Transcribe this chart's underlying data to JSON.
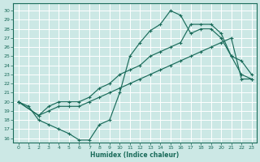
{
  "xlabel": "Humidex (Indice chaleur)",
  "bg_color": "#cce8e5",
  "grid_color": "#b8d8d5",
  "line_color": "#1a6b5a",
  "xlim": [
    -0.5,
    23.5
  ],
  "ylim": [
    15.5,
    30.8
  ],
  "xticks": [
    0,
    1,
    2,
    3,
    4,
    5,
    6,
    7,
    8,
    9,
    10,
    11,
    12,
    13,
    14,
    15,
    16,
    17,
    18,
    19,
    20,
    21,
    22,
    23
  ],
  "yticks": [
    16,
    17,
    18,
    19,
    20,
    21,
    22,
    23,
    24,
    25,
    26,
    27,
    28,
    29,
    30
  ],
  "line1_x": [
    0,
    1,
    2,
    3,
    4,
    5,
    6,
    7,
    8,
    9,
    10,
    11,
    12,
    13,
    14,
    15,
    16,
    17,
    18,
    19,
    20,
    21,
    22,
    23
  ],
  "line1_y": [
    20,
    19.5,
    18,
    17.5,
    17,
    16.5,
    15.8,
    15.8,
    17.5,
    18,
    21,
    25,
    26.5,
    27.8,
    28.5,
    30,
    29.5,
    27.5,
    28,
    28,
    27,
    25,
    23,
    22.5
  ],
  "line2_x": [
    0,
    2,
    3,
    4,
    5,
    6,
    7,
    8,
    9,
    10,
    11,
    12,
    13,
    14,
    15,
    16,
    17,
    18,
    19,
    20,
    21,
    22,
    23
  ],
  "line2_y": [
    20,
    18.5,
    19.5,
    20,
    20,
    20,
    20.5,
    21.5,
    22,
    23,
    23.5,
    24,
    25,
    25.5,
    26,
    26.5,
    28.5,
    28.5,
    28.5,
    27.5,
    25,
    24.5,
    23
  ],
  "line3_x": [
    0,
    2,
    3,
    4,
    5,
    6,
    7,
    8,
    9,
    10,
    11,
    12,
    13,
    14,
    15,
    16,
    17,
    18,
    19,
    20,
    21,
    22,
    23
  ],
  "line3_y": [
    20,
    18.5,
    19,
    19.5,
    19.5,
    19.5,
    20,
    20.5,
    21,
    21.5,
    22,
    22.5,
    23,
    23.5,
    24,
    24.5,
    25,
    25.5,
    26,
    26.5,
    27,
    22.5,
    22.5
  ]
}
